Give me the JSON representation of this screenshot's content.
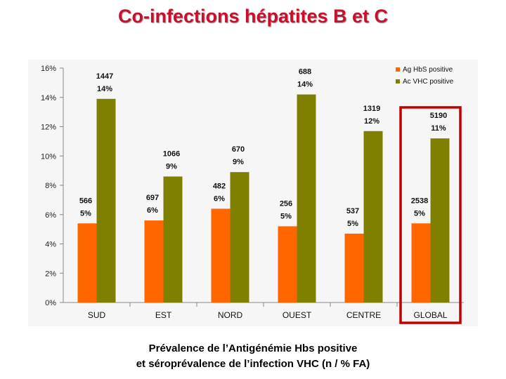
{
  "slide": {
    "title": "Co-infections hépatites B et C",
    "caption_line1": "Prévalence de l’Antigénémie Hbs positive",
    "caption_line2": "et séroprévalence de l’infection VHC (n / % FA)"
  },
  "chart_data": {
    "type": "bar",
    "categories": [
      "SUD",
      "EST",
      "NORD",
      "OUEST",
      "CENTRE",
      "GLOBAL"
    ],
    "series": [
      {
        "name": "Ag HbS positive",
        "color": "#ff6600",
        "values": [
          5.4,
          5.6,
          6.4,
          5.2,
          4.7,
          5.4
        ],
        "counts": [
          "566",
          "697",
          "482",
          "256",
          "537",
          "2538"
        ],
        "percent_labels": [
          "5%",
          "6%",
          "6%",
          "5%",
          "5%",
          "5%"
        ]
      },
      {
        "name": "Ac VHC positive",
        "color": "#808000",
        "values": [
          13.9,
          8.6,
          8.9,
          14.2,
          11.7,
          11.2
        ],
        "counts": [
          "1447",
          "1066",
          "670",
          "688",
          "1319",
          "5190"
        ],
        "percent_labels": [
          "14%",
          "9%",
          "9%",
          "14%",
          "12%",
          "11%"
        ]
      }
    ],
    "ylim": [
      0,
      16
    ],
    "yticks": [
      "0%",
      "2%",
      "4%",
      "6%",
      "8%",
      "10%",
      "12%",
      "14%",
      "16%"
    ],
    "highlight_category": "GLOBAL",
    "highlight_color": "#c00000",
    "legend_position": "top-right",
    "xlabel": "",
    "ylabel": ""
  }
}
